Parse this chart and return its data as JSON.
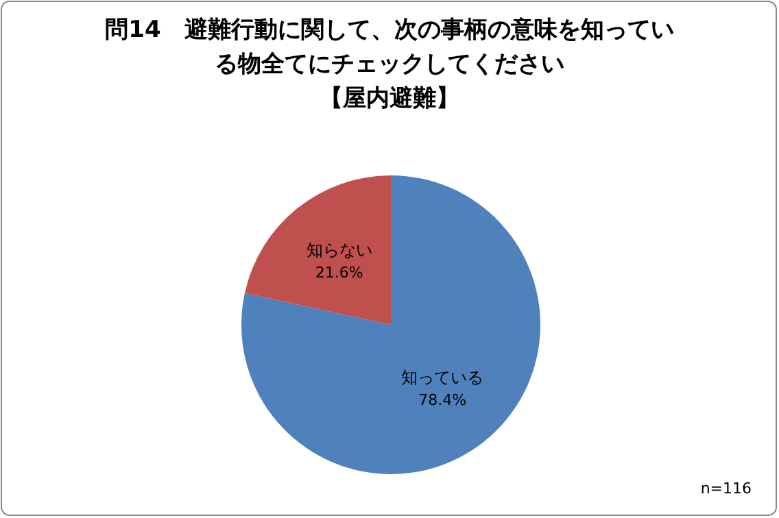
{
  "chart_data": {
    "type": "pie",
    "title": "問14　避難行動に関して、次の事柄の意味を知っている物全てにチェックしてください",
    "subtitle": "【屋内避難】",
    "categories": [
      "知っている",
      "知らない"
    ],
    "values": [
      78.4,
      21.6
    ],
    "colors": [
      "#4f81bd",
      "#c0504d"
    ],
    "value_labels": [
      "78.4%",
      "21.6%"
    ],
    "annotations": [
      "n=116"
    ]
  }
}
